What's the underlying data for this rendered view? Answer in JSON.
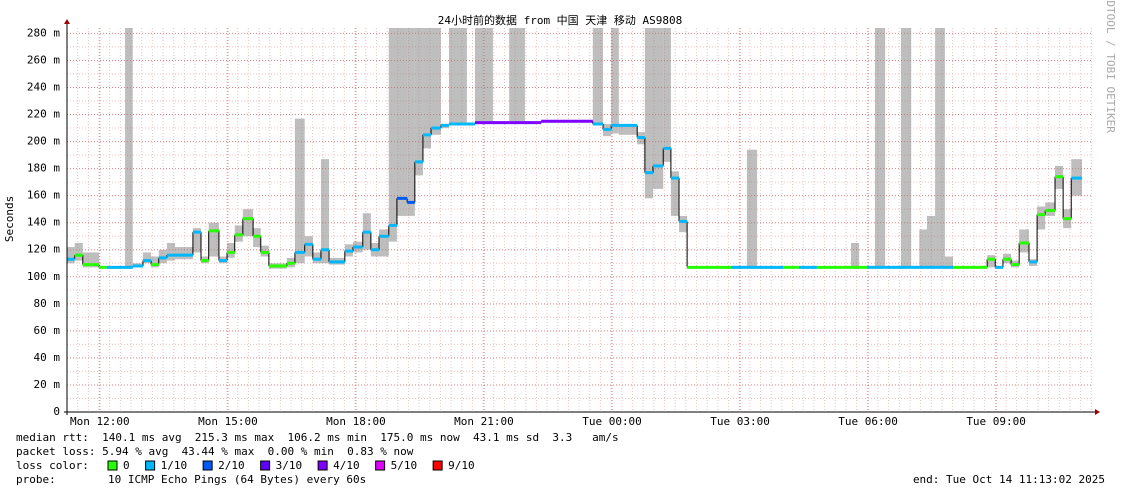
{
  "chart_data": {
    "type": "smokeping",
    "title": "24小时前的数据 from 中国 天津 移动 AS9808",
    "y_label": "Seconds",
    "watermark": "RRDTOOL / TOBI OETIKER",
    "xlim": [
      11.23,
      35.27
    ],
    "xticks": [
      {
        "value": 12,
        "label": "Mon 12:00"
      },
      {
        "value": 15,
        "label": "Mon 15:00"
      },
      {
        "value": 18,
        "label": "Mon 18:00"
      },
      {
        "value": 21,
        "label": "Mon 21:00"
      },
      {
        "value": 24,
        "label": "Tue 00:00"
      },
      {
        "value": 27,
        "label": "Tue 03:00"
      },
      {
        "value": 30,
        "label": "Tue 06:00"
      },
      {
        "value": 33,
        "label": "Tue 09:00"
      }
    ],
    "ylim": [
      0,
      284
    ],
    "yticks": [
      0,
      {
        "value": 20,
        "label": "20 m"
      },
      {
        "value": 40,
        "label": "40 m"
      },
      {
        "value": 60,
        "label": "60 m"
      },
      {
        "value": 80,
        "label": "80 m"
      },
      {
        "value": 100,
        "label": "100 m"
      },
      {
        "value": 120,
        "label": "120 m"
      },
      {
        "value": 140,
        "label": "140 m"
      },
      {
        "value": 160,
        "label": "160 m"
      },
      {
        "value": 180,
        "label": "180 m"
      },
      {
        "value": 200,
        "label": "200 m"
      },
      {
        "value": 220,
        "label": "220 m"
      },
      {
        "value": 240,
        "label": "240 m"
      },
      {
        "value": 260,
        "label": "260 m"
      },
      {
        "value": 280,
        "label": "280 m"
      }
    ],
    "grid": true,
    "smoke_color": "#888888",
    "x": [
      11.23,
      11.41,
      11.6,
      11.98,
      12.16,
      12.59,
      12.77,
      13.01,
      13.2,
      13.38,
      13.57,
      13.76,
      14.18,
      14.37,
      14.55,
      14.79,
      14.98,
      15.16,
      15.35,
      15.59,
      15.77,
      15.96,
      16.2,
      16.38,
      16.57,
      16.8,
      16.99,
      17.18,
      17.37,
      17.74,
      17.93,
      18.16,
      18.35,
      18.54,
      18.77,
      18.96,
      19.2,
      19.38,
      19.57,
      19.76,
      19.99,
      20.18,
      20.6,
      20.79,
      20.98,
      21.21,
      21.59,
      21.96,
      22.34,
      23.55,
      23.79,
      23.98,
      24.16,
      24.59,
      24.77,
      24.96,
      25.2,
      25.38,
      25.57,
      25.76,
      26.23,
      26.79,
      27.16,
      27.4,
      28.01,
      28.38,
      28.8,
      29.41,
      29.6,
      29.79,
      29.98,
      30.16,
      30.4,
      30.77,
      31.01,
      31.2,
      31.38,
      31.57,
      31.8,
      31.99,
      32.37,
      32.6,
      32.79,
      32.98,
      33.16,
      33.35,
      33.54,
      33.77,
      33.96,
      34.15,
      34.38,
      34.57,
      34.76,
      34.99
    ],
    "median": [
      113,
      116,
      109,
      107,
      107,
      107,
      108,
      112,
      109,
      114,
      116,
      116,
      133,
      112,
      134,
      112,
      118,
      131,
      143,
      130,
      118,
      108,
      108,
      110,
      118,
      124,
      113,
      120,
      111,
      119,
      122,
      133,
      120,
      130,
      138,
      158,
      155,
      185,
      205,
      210,
      212,
      213,
      213,
      214,
      214,
      214,
      214,
      214,
      215,
      213,
      209,
      212,
      212,
      203,
      177,
      182,
      195,
      173,
      141,
      107,
      107,
      107,
      107,
      107,
      107,
      107,
      107,
      107,
      107,
      107,
      107,
      107,
      107,
      107,
      107,
      107,
      107,
      107,
      107,
      107,
      107,
      107,
      113,
      107,
      113,
      109,
      125,
      111,
      146,
      149,
      174,
      143,
      173,
      173
    ],
    "smoke_low": [
      110,
      112,
      107,
      106,
      106,
      106,
      107,
      110,
      107,
      110,
      112,
      113,
      118,
      110,
      115,
      110,
      114,
      126,
      130,
      122,
      115,
      106,
      106,
      107,
      110,
      115,
      110,
      110,
      109,
      115,
      118,
      120,
      115,
      115,
      126,
      145,
      145,
      175,
      195,
      205,
      210,
      212,
      212,
      213,
      213,
      213,
      213,
      213,
      214,
      212,
      204,
      206,
      205,
      198,
      158,
      165,
      185,
      145,
      133,
      106,
      106,
      106,
      106,
      106,
      106,
      106,
      106,
      106,
      106,
      106,
      106,
      106,
      106,
      106,
      106,
      106,
      106,
      106,
      106,
      106,
      106,
      106,
      107,
      106,
      110,
      107,
      118,
      108,
      135,
      145,
      165,
      136,
      160,
      160
    ],
    "smoke_high": [
      122,
      125,
      118,
      108,
      108,
      284,
      110,
      118,
      115,
      120,
      125,
      122,
      136,
      115,
      140,
      115,
      125,
      138,
      150,
      136,
      123,
      110,
      110,
      114,
      217,
      130,
      118,
      187,
      114,
      124,
      126,
      147,
      125,
      135,
      284,
      284,
      284,
      284,
      284,
      284,
      213,
      284,
      213,
      284,
      284,
      214,
      284,
      214,
      215,
      284,
      213,
      284,
      213,
      207,
      284,
      284,
      284,
      178,
      145,
      108,
      108,
      108,
      194,
      108,
      108,
      108,
      108,
      108,
      125,
      108,
      108,
      284,
      108,
      284,
      108,
      135,
      145,
      284,
      115,
      108,
      108,
      108,
      116,
      108,
      117,
      112,
      135,
      113,
      152,
      155,
      182,
      150,
      187,
      187
    ],
    "loss": [
      1,
      0,
      0,
      0,
      1,
      1,
      1,
      1,
      0,
      1,
      1,
      1,
      1,
      0,
      0,
      1,
      0,
      0,
      0,
      0,
      0,
      0,
      0,
      0,
      1,
      1,
      1,
      1,
      1,
      1,
      1,
      1,
      1,
      1,
      1,
      2,
      2,
      1,
      1,
      1,
      1,
      1,
      1,
      4,
      4,
      4,
      4,
      4,
      4,
      1,
      1,
      1,
      1,
      1,
      1,
      1,
      1,
      1,
      1,
      0,
      0,
      1,
      1,
      1,
      0,
      1,
      0,
      0,
      0,
      0,
      1,
      1,
      1,
      1,
      1,
      1,
      1,
      1,
      1,
      0,
      0,
      0,
      0,
      1,
      0,
      0,
      0,
      1,
      0,
      0,
      0,
      0,
      1,
      1
    ],
    "stats": [
      "median rtt:  140.1 ms avg  215.3 ms max  106.2 ms min  175.0 ms now  43.1 ms sd  3.3   am/s",
      "packet loss: 5.94 % avg  43.44 % max  0.00 % min  0.83 % now"
    ],
    "loss_title": "loss color:",
    "loss_legend": [
      {
        "label": "0",
        "color": "#26ff00"
      },
      {
        "label": "1/10",
        "color": "#00b8ff"
      },
      {
        "label": "2/10",
        "color": "#0059ff"
      },
      {
        "label": "3/10",
        "color": "#5e00ff"
      },
      {
        "label": "4/10",
        "color": "#7e00ff"
      },
      {
        "label": "5/10",
        "color": "#dd00ff"
      },
      {
        "label": "9/10",
        "color": "#ff0000"
      }
    ],
    "probe_title": "probe:",
    "probe": "10 ICMP Echo Pings (64 Bytes) every 60s",
    "end": "end: Tue Oct 14 11:13:02 2025"
  }
}
